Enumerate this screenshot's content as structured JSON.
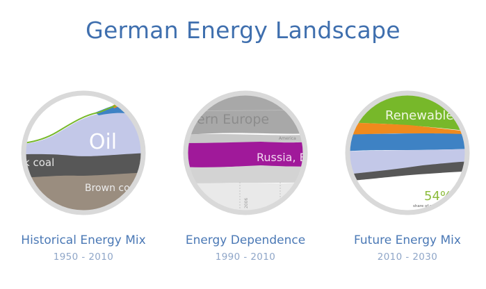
{
  "page": {
    "title": "German Energy Landscape"
  },
  "cards": [
    {
      "title": "Historical Energy Mix",
      "years": "1950 - 2010",
      "labels": {
        "oil": "Oil",
        "hard_coal": "k coal",
        "brown_coal": "Brown co"
      }
    },
    {
      "title": "Energy Dependence",
      "years": "1990 - 2010",
      "labels": {
        "western_europe": "ern Europe",
        "russia": "Russia, Eas",
        "america": "America",
        "year_a": "2006",
        "year_b": "2002"
      }
    },
    {
      "title": "Future Energy Mix",
      "years": "2010 - 2030",
      "labels": {
        "renewable": "Renewable",
        "share_value": "54%",
        "share_caption": "share of renew"
      }
    }
  ],
  "colors": {
    "title": "#3f6fae",
    "card_title": "#4a78b5",
    "years": "#8fa6c8",
    "ring": "#d9d9d9",
    "oil": "#c3c8e8",
    "brown_coal": "#9a8d7f",
    "hard_coal": "#5a5a5a",
    "renewable": "#77b82a",
    "orange": "#f08a1d",
    "blue": "#3e82c4",
    "magenta": "#a0199a"
  }
}
